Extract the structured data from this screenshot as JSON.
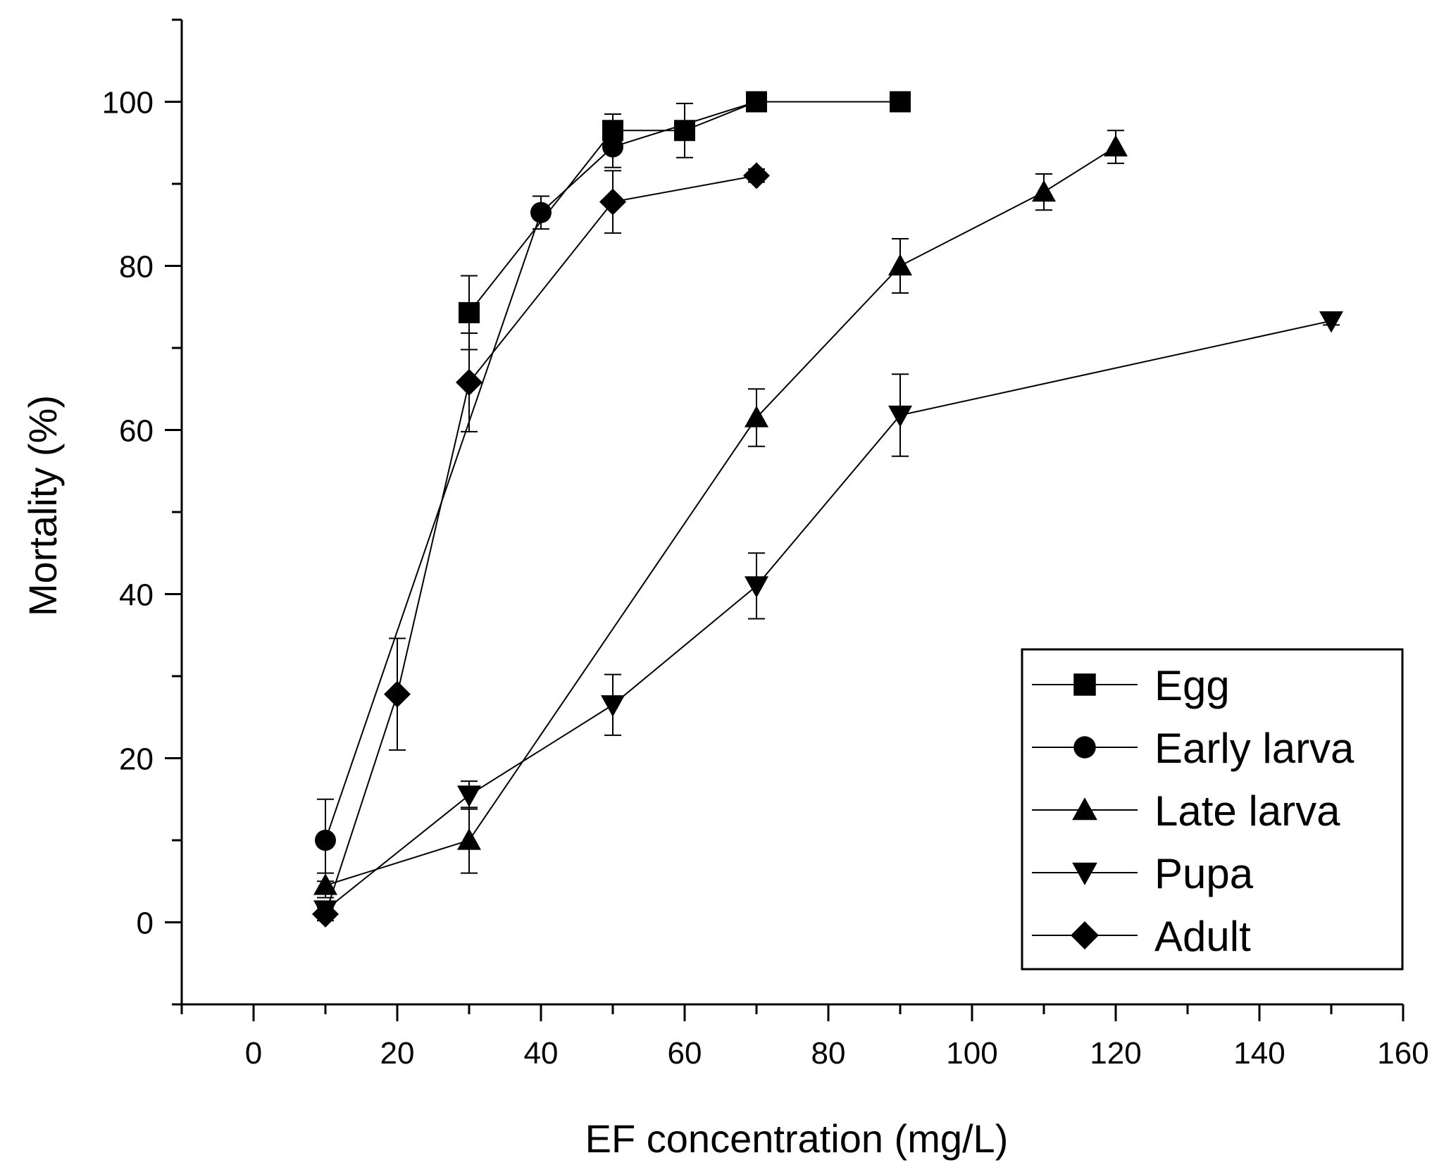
{
  "chart_data": {
    "type": "line",
    "title": "",
    "xlabel": "EF concentration (mg/L)",
    "ylabel": "Mortality (%)",
    "xlim": [
      -10,
      160
    ],
    "ylim": [
      -10,
      110
    ],
    "x_ticks": [
      0,
      20,
      40,
      60,
      80,
      100,
      120,
      140,
      160
    ],
    "y_ticks": [
      0,
      20,
      40,
      60,
      80,
      100
    ],
    "legend_position": "bottom-right",
    "grid": false,
    "series": [
      {
        "name": "Egg",
        "marker": "square",
        "x": [
          30,
          50,
          60,
          70,
          90
        ],
        "y": [
          74.3,
          96.5,
          96.5,
          100,
          100
        ],
        "err": [
          4.5,
          2.0,
          3.3,
          0.5,
          0.5
        ]
      },
      {
        "name": "Early larva",
        "marker": "circle",
        "x": [
          10,
          40,
          50,
          70
        ],
        "y": [
          10,
          86.5,
          94.5,
          100
        ],
        "err": [
          5.0,
          2.0,
          2.5,
          0.5
        ]
      },
      {
        "name": "Late larva",
        "marker": "triangle-up",
        "x": [
          10,
          30,
          70,
          90,
          110,
          120
        ],
        "y": [
          4.5,
          10,
          61.5,
          80,
          89,
          94.5
        ],
        "err": [
          1.5,
          4.0,
          3.5,
          3.3,
          2.2,
          2.0
        ]
      },
      {
        "name": "Pupa",
        "marker": "triangle-down",
        "x": [
          10,
          30,
          50,
          70,
          90,
          150
        ],
        "y": [
          1.5,
          15.5,
          26.5,
          41,
          61.8,
          73.3
        ],
        "err": [
          1.0,
          1.7,
          3.7,
          4.0,
          5.0,
          0.5
        ]
      },
      {
        "name": "Adult",
        "marker": "diamond",
        "x": [
          10,
          20,
          30,
          50,
          70
        ],
        "y": [
          1,
          27.8,
          65.8,
          87.8,
          91
        ],
        "err": [
          0.8,
          6.8,
          6.0,
          3.8,
          0.8
        ]
      }
    ]
  }
}
